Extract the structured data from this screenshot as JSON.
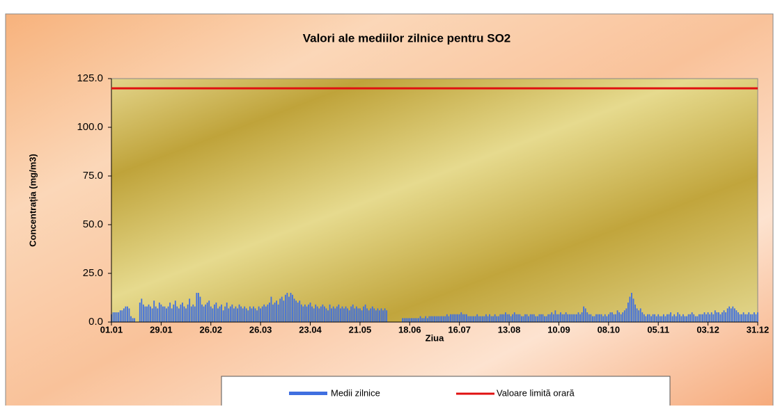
{
  "chart_data": {
    "type": "bar",
    "title": "Valori ale mediilor zilnice pentru SO2",
    "y_label": "Concentrația  (mg/m3)",
    "x_label": "Ziua",
    "categories": [
      "01.01",
      null,
      null,
      null,
      null,
      null,
      null,
      null,
      null,
      null,
      null,
      null,
      null,
      null,
      null,
      null,
      null,
      null,
      null,
      null,
      null,
      null,
      null,
      null,
      null,
      null,
      null,
      null,
      "29.01",
      null,
      null,
      null,
      null,
      null,
      null,
      null,
      null,
      null,
      null,
      null,
      null,
      null,
      null,
      null,
      null,
      null,
      null,
      null,
      null,
      null,
      null,
      null,
      null,
      null,
      null,
      null,
      "26.02",
      null,
      null,
      null,
      null,
      null,
      null,
      null,
      null,
      null,
      null,
      null,
      null,
      null,
      null,
      null,
      null,
      null,
      null,
      null,
      null,
      null,
      null,
      null,
      null,
      null,
      null,
      null,
      "26.03",
      null,
      null,
      null,
      null,
      null,
      null,
      null,
      null,
      null,
      null,
      null,
      null,
      null,
      null,
      null,
      null,
      null,
      null,
      null,
      null,
      null,
      null,
      null,
      null,
      null,
      null,
      null,
      "23.04",
      null,
      null,
      null,
      null,
      null,
      null,
      null,
      null,
      null,
      null,
      null,
      null,
      null,
      null,
      null,
      null,
      null,
      null,
      null,
      null,
      null,
      null,
      null,
      null,
      null,
      null,
      null,
      "21.05",
      null,
      null,
      null,
      null,
      null,
      null,
      null,
      null,
      null,
      null,
      null,
      null,
      null,
      null,
      null,
      null,
      null,
      null,
      null,
      null,
      null,
      null,
      null,
      null,
      null,
      null,
      null,
      "18.06",
      null,
      null,
      null,
      null,
      null,
      null,
      null,
      null,
      null,
      null,
      null,
      null,
      null,
      null,
      null,
      null,
      null,
      null,
      null,
      null,
      null,
      null,
      null,
      null,
      null,
      null,
      null,
      "16.07",
      null,
      null,
      null,
      null,
      null,
      null,
      null,
      null,
      null,
      null,
      null,
      null,
      null,
      null,
      null,
      null,
      null,
      null,
      null,
      null,
      null,
      null,
      null,
      null,
      null,
      null,
      null,
      "13.08",
      null,
      null,
      null,
      null,
      null,
      null,
      null,
      null,
      null,
      null,
      null,
      null,
      null,
      null,
      null,
      null,
      null,
      null,
      null,
      null,
      null,
      null,
      null,
      null,
      null,
      null,
      null,
      "10.09",
      null,
      null,
      null,
      null,
      null,
      null,
      null,
      null,
      null,
      null,
      null,
      null,
      null,
      null,
      null,
      null,
      null,
      null,
      null,
      null,
      null,
      null,
      null,
      null,
      null,
      null,
      null,
      "08.10",
      null,
      null,
      null,
      null,
      null,
      null,
      null,
      null,
      null,
      null,
      null,
      null,
      null,
      null,
      null,
      null,
      null,
      null,
      null,
      null,
      null,
      null,
      null,
      null,
      null,
      null,
      null,
      "05.11",
      null,
      null,
      null,
      null,
      null,
      null,
      null,
      null,
      null,
      null,
      null,
      null,
      null,
      null,
      null,
      null,
      null,
      null,
      null,
      null,
      null,
      null,
      null,
      null,
      null,
      null,
      null,
      "03.12",
      null,
      null,
      null,
      null,
      null,
      null,
      null,
      null,
      null,
      null,
      null,
      null,
      null,
      null,
      null,
      null,
      null,
      null,
      null,
      null,
      null,
      null,
      null,
      null,
      null,
      null,
      null,
      "31.12"
    ],
    "series": [
      {
        "name": "Medii zilnice",
        "color": "#3f6fe0",
        "values": [
          4,
          5,
          5,
          5,
          5,
          6,
          6,
          7,
          8,
          8,
          7,
          3,
          2,
          2,
          null,
          null,
          10,
          12,
          9,
          8,
          8,
          9,
          8,
          7,
          11,
          8,
          7,
          10,
          9,
          8,
          8,
          7,
          8,
          10,
          7,
          9,
          11,
          8,
          7,
          9,
          10,
          8,
          7,
          9,
          12,
          8,
          9,
          8,
          15,
          15,
          13,
          9,
          8,
          9,
          10,
          11,
          8,
          7,
          9,
          10,
          7,
          8,
          9,
          6,
          8,
          10,
          7,
          8,
          9,
          7,
          8,
          7,
          9,
          8,
          7,
          8,
          7,
          6,
          8,
          7,
          8,
          7,
          6,
          8,
          7,
          8,
          9,
          8,
          9,
          10,
          13,
          9,
          10,
          11,
          9,
          12,
          13,
          11,
          14,
          15,
          13,
          15,
          14,
          12,
          11,
          10,
          11,
          9,
          8,
          9,
          8,
          9,
          10,
          8,
          7,
          9,
          8,
          7,
          8,
          9,
          8,
          7,
          6,
          9,
          7,
          8,
          7,
          8,
          9,
          7,
          8,
          7,
          8,
          7,
          6,
          8,
          9,
          7,
          8,
          7,
          7,
          6,
          8,
          9,
          7,
          6,
          7,
          8,
          7,
          6,
          7,
          6,
          7,
          6,
          7,
          6,
          null,
          null,
          null,
          null,
          null,
          null,
          null,
          null,
          2,
          2,
          2,
          2,
          2,
          2,
          2,
          2,
          2,
          2,
          3,
          2,
          2,
          3,
          2,
          3,
          3,
          3,
          3,
          3,
          3,
          3,
          3,
          3,
          3,
          4,
          3,
          4,
          4,
          4,
          4,
          4,
          4,
          5,
          4,
          4,
          4,
          3,
          3,
          3,
          3,
          3,
          4,
          3,
          3,
          3,
          3,
          4,
          3,
          4,
          3,
          3,
          4,
          3,
          3,
          4,
          4,
          4,
          5,
          4,
          4,
          3,
          4,
          5,
          4,
          4,
          4,
          3,
          3,
          4,
          4,
          3,
          4,
          4,
          4,
          3,
          3,
          4,
          4,
          4,
          3,
          3,
          4,
          4,
          5,
          4,
          6,
          4,
          4,
          5,
          4,
          4,
          5,
          4,
          4,
          4,
          4,
          4,
          4,
          5,
          4,
          5,
          8,
          7,
          5,
          4,
          4,
          3,
          3,
          4,
          4,
          4,
          4,
          3,
          4,
          3,
          4,
          5,
          5,
          4,
          4,
          6,
          5,
          4,
          5,
          6,
          7,
          10,
          13,
          15,
          12,
          9,
          7,
          6,
          7,
          5,
          4,
          3,
          4,
          4,
          3,
          4,
          4,
          3,
          4,
          3,
          3,
          4,
          3,
          4,
          4,
          5,
          3,
          4,
          3,
          5,
          4,
          3,
          4,
          3,
          3,
          4,
          4,
          5,
          4,
          3,
          3,
          4,
          4,
          4,
          5,
          4,
          5,
          4,
          5,
          4,
          6,
          5,
          5,
          4,
          5,
          6,
          5,
          7,
          8,
          7,
          8,
          7,
          6,
          5,
          4,
          4,
          5,
          4,
          4,
          5,
          4,
          4,
          5,
          4,
          5
        ]
      }
    ],
    "limit_line": {
      "name": "Valoare limită orară",
      "color": "#e01010",
      "value": 120
    },
    "ylim": [
      0,
      125
    ],
    "yticks": [
      {
        "value": 0,
        "label": "0.0"
      },
      {
        "value": 25,
        "label": "25.0"
      },
      {
        "value": 50,
        "label": "50.0"
      },
      {
        "value": 75,
        "label": "75.0"
      },
      {
        "value": 100,
        "label": "100.0"
      },
      {
        "value": 125,
        "label": "125.0"
      }
    ]
  }
}
